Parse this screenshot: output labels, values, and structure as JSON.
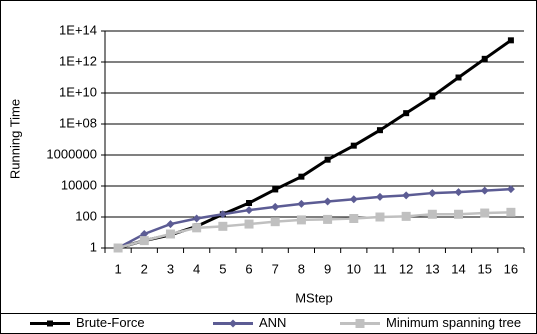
{
  "chart_data": {
    "type": "line",
    "y_label": "Running Time",
    "x_label": "MStep",
    "categories": [
      "1",
      "2",
      "3",
      "4",
      "5",
      "6",
      "7",
      "8",
      "9",
      "10",
      "11",
      "12",
      "13",
      "14",
      "15",
      "16"
    ],
    "series": [
      {
        "name": "Brute-Force",
        "color": "#000000",
        "marker": "square",
        "values": [
          1,
          3,
          7,
          25,
          150,
          800,
          6000,
          40000,
          500000,
          4000000,
          40000000,
          500000000,
          6000000000,
          100000000000,
          1600000000000,
          25000000000000
        ]
      },
      {
        "name": "ANN",
        "color": "#5c5c94",
        "marker": "diamond",
        "values": [
          1,
          8,
          35,
          80,
          150,
          280,
          450,
          700,
          1000,
          1400,
          2000,
          2500,
          3500,
          4000,
          5000,
          6300
        ]
      },
      {
        "name": "Minimum spanning tree",
        "color": "#c0c0c0",
        "marker": "square",
        "values": [
          1,
          3,
          8,
          20,
          25,
          35,
          50,
          65,
          70,
          80,
          100,
          110,
          150,
          150,
          180,
          200
        ]
      }
    ],
    "ylog": true,
    "ylim": [
      1,
      100000000000000
    ],
    "yticks": [
      1,
      100,
      10000,
      1000000,
      {
        "value": 100000000,
        "label": "1E+08"
      },
      {
        "value": 10000000000,
        "label": "1E+10"
      },
      {
        "value": 1000000000000,
        "label": "1E+12"
      },
      {
        "value": 100000000000000,
        "label": "1E+14"
      }
    ],
    "grid": true,
    "legend": "bottom"
  }
}
